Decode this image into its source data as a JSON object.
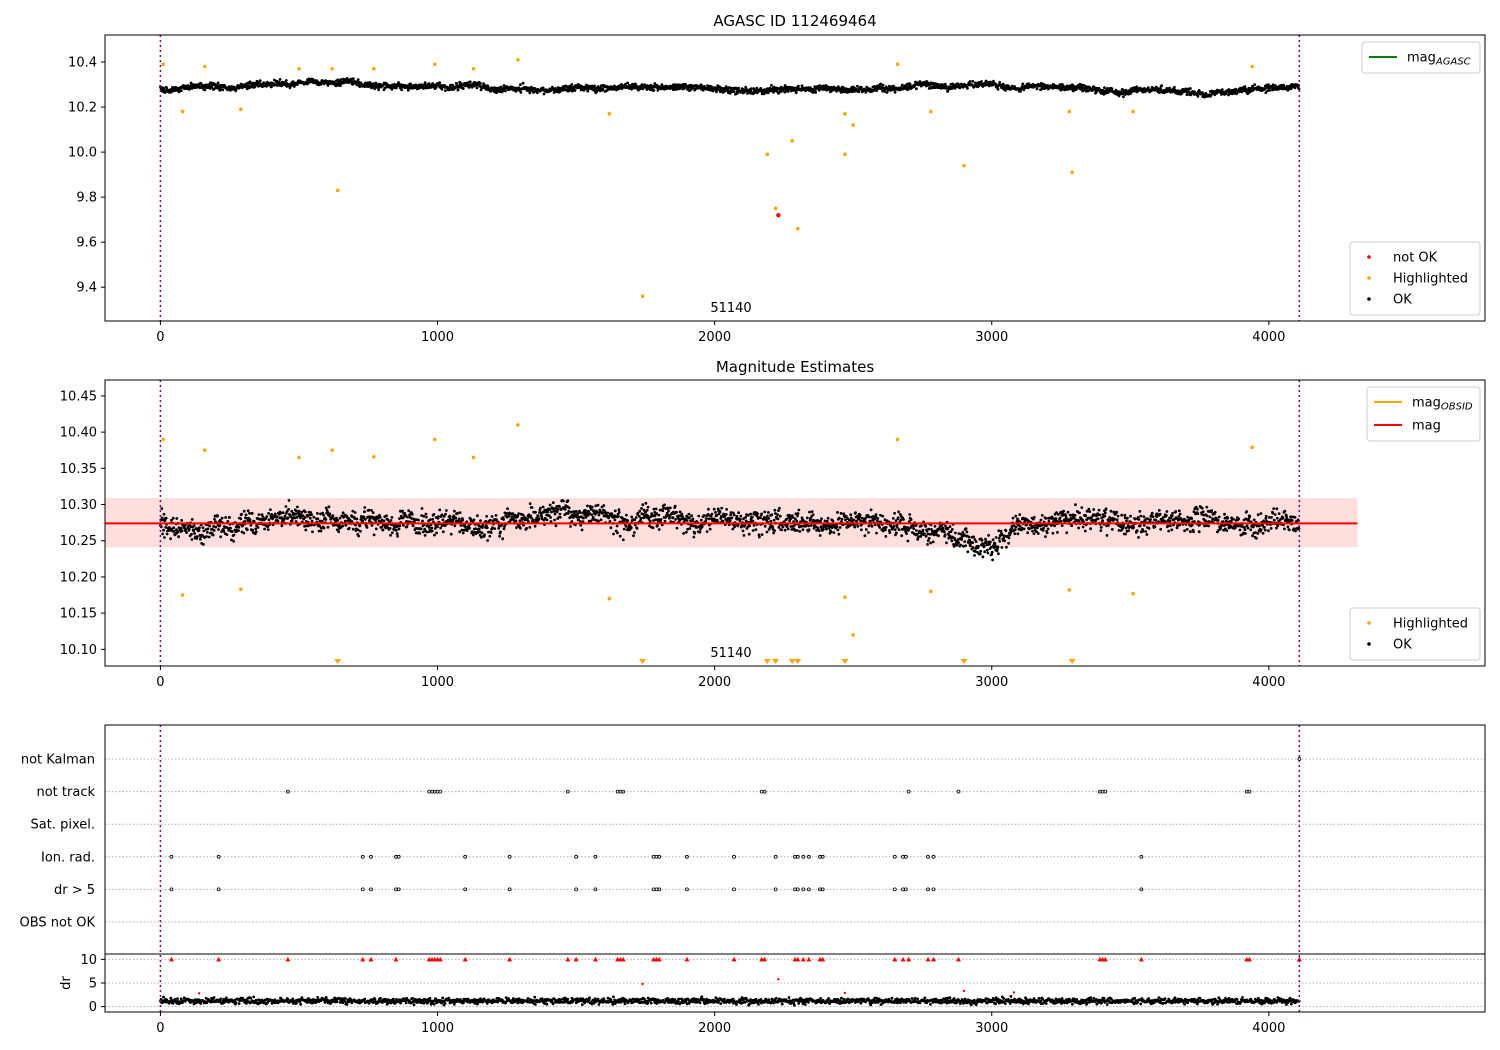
{
  "figure_title": "AGASC ID 112469464",
  "chart_data": [
    {
      "type": "scatter",
      "title": "",
      "annotation": "51140",
      "xlim": [
        -200,
        4780
      ],
      "ylim": [
        9.25,
        10.52
      ],
      "xticks": [
        0,
        1000,
        2000,
        3000,
        4000
      ],
      "yticks": [
        9.4,
        9.6,
        9.8,
        10.0,
        10.2,
        10.4
      ],
      "ytick_labels": [
        "9.4",
        "9.6",
        "9.8",
        "10.0",
        "10.2",
        "10.4"
      ],
      "vlines": [
        0,
        4110
      ],
      "ok_band": {
        "x_range": [
          0,
          4110
        ],
        "center": 10.28,
        "noise": 0.03
      },
      "legend_lines": [
        {
          "name": "mag",
          "sub": "AGASC",
          "color": "#008000"
        }
      ],
      "legend_points": [
        {
          "name": "not OK",
          "color": "#ff0000"
        },
        {
          "name": "Highlighted",
          "color": "#ffa500"
        },
        {
          "name": "OK",
          "color": "#000000"
        }
      ],
      "series": [
        {
          "name": "Highlighted",
          "color": "#ffa500",
          "points": [
            [
              10,
              10.39
            ],
            [
              80,
              10.18
            ],
            [
              160,
              10.38
            ],
            [
              290,
              10.19
            ],
            [
              500,
              10.37
            ],
            [
              620,
              10.37
            ],
            [
              640,
              9.83
            ],
            [
              770,
              10.37
            ],
            [
              990,
              10.39
            ],
            [
              1130,
              10.37
            ],
            [
              1290,
              10.41
            ],
            [
              1620,
              10.17
            ],
            [
              1740,
              9.36
            ],
            [
              2190,
              9.99
            ],
            [
              2220,
              9.75
            ],
            [
              2280,
              10.05
            ],
            [
              2300,
              9.66
            ],
            [
              2470,
              10.17
            ],
            [
              2470,
              9.99
            ],
            [
              2500,
              10.12
            ],
            [
              2660,
              10.39
            ],
            [
              2780,
              10.18
            ],
            [
              2900,
              9.94
            ],
            [
              3280,
              10.18
            ],
            [
              3290,
              9.91
            ],
            [
              3510,
              10.18
            ],
            [
              3940,
              10.38
            ]
          ]
        },
        {
          "name": "not OK",
          "color": "#ff0000",
          "points": [
            [
              2230,
              9.72
            ]
          ]
        }
      ]
    },
    {
      "type": "scatter",
      "title": "Magnitude Estimates",
      "annotation": "51140",
      "xlim": [
        -200,
        4780
      ],
      "ylim": [
        10.077,
        10.472
      ],
      "xticks": [
        0,
        1000,
        2000,
        3000,
        4000
      ],
      "yticks": [
        10.1,
        10.15,
        10.2,
        10.25,
        10.3,
        10.35,
        10.4,
        10.45
      ],
      "ytick_labels": [
        "10.10",
        "10.15",
        "10.20",
        "10.25",
        "10.30",
        "10.35",
        "10.40",
        "10.45"
      ],
      "vlines": [
        0,
        4110
      ],
      "ok_band": {
        "x_range": [
          0,
          4110
        ],
        "center": 10.275,
        "noise": 0.032
      },
      "mag_line": {
        "value": 10.274,
        "x_range": [
          -200,
          4320
        ],
        "color": "#ff0000"
      },
      "mag_band": {
        "low": 10.241,
        "high": 10.309,
        "x_range": [
          -200,
          4320
        ]
      },
      "legend_lines": [
        {
          "name": "mag",
          "sub": "OBSID",
          "color": "#ffa500"
        },
        {
          "name": "mag",
          "sub": "",
          "color": "#ff0000"
        }
      ],
      "legend_points": [
        {
          "name": "Highlighted",
          "color": "#ffa500"
        },
        {
          "name": "OK",
          "color": "#000000"
        }
      ],
      "series": [
        {
          "name": "Highlighted",
          "color": "#ffa500",
          "points": [
            [
              10,
              10.39
            ],
            [
              80,
              10.175
            ],
            [
              160,
              10.375
            ],
            [
              290,
              10.183
            ],
            [
              500,
              10.365
            ],
            [
              620,
              10.375
            ],
            [
              770,
              10.366
            ],
            [
              990,
              10.39
            ],
            [
              1130,
              10.365
            ],
            [
              1290,
              10.41
            ],
            [
              1620,
              10.17
            ],
            [
              2470,
              10.172
            ],
            [
              2500,
              10.12
            ],
            [
              2660,
              10.39
            ],
            [
              2780,
              10.18
            ],
            [
              3280,
              10.182
            ],
            [
              3510,
              10.177
            ],
            [
              3940,
              10.379
            ]
          ]
        }
      ],
      "offscale_markers": [
        640,
        1740,
        2190,
        2220,
        2280,
        2300,
        2470,
        2900,
        3290
      ]
    },
    {
      "type": "scatter",
      "title": "",
      "xlim": [
        -200,
        4780
      ],
      "xticks": [
        0,
        1000,
        2000,
        3000,
        4000
      ],
      "vlines": [
        0,
        4110
      ],
      "flag_rows": [
        "not Kalman",
        "not track",
        "Sat. pixel.",
        "Ion. rad.",
        "dr > 5",
        "OBS not OK"
      ],
      "flags": {
        "not Kalman": [
          4110
        ],
        "not track": [
          460,
          970,
          980,
          990,
          1000,
          1010,
          1470,
          1650,
          1660,
          1670,
          2170,
          2180,
          2700,
          2880,
          3390,
          3400,
          3410,
          3920,
          3930
        ],
        "Sat. pixel.": [],
        "Ion. rad.": [
          40,
          210,
          730,
          760,
          850,
          860,
          1100,
          1260,
          1500,
          1570,
          1780,
          1790,
          1800,
          1900,
          2070,
          2220,
          2290,
          2300,
          2320,
          2340,
          2380,
          2390,
          2650,
          2680,
          2690,
          2770,
          2790,
          3540
        ],
        "dr > 5": [
          40,
          210,
          730,
          760,
          850,
          860,
          1100,
          1260,
          1500,
          1570,
          1780,
          1790,
          1800,
          1900,
          2070,
          2220,
          2290,
          2300,
          2320,
          2340,
          2380,
          2390,
          2650,
          2680,
          2690,
          2770,
          2790,
          3540
        ],
        "OBS not OK": []
      },
      "dr": {
        "ylabel": "dr",
        "ylim": [
          -0.5,
          10.5
        ],
        "yticks": [
          0,
          5,
          10
        ],
        "ytick_labels": [
          "0",
          "5",
          "10"
        ],
        "baseline": {
          "x_range": [
            0,
            4110
          ],
          "center": 1.2,
          "noise": 0.6
        },
        "clipped_x": [
          40,
          210,
          460,
          730,
          760,
          850,
          970,
          980,
          990,
          1000,
          1010,
          1100,
          1260,
          1470,
          1500,
          1570,
          1650,
          1660,
          1670,
          1780,
          1790,
          1800,
          1900,
          2070,
          2170,
          2180,
          2290,
          2300,
          2320,
          2340,
          2380,
          2390,
          2650,
          2680,
          2700,
          2770,
          2790,
          2880,
          3390,
          3400,
          3410,
          3540,
          3920,
          3930,
          4110
        ],
        "red_points": [
          [
            140,
            2.8
          ],
          [
            1740,
            4.8
          ],
          [
            2230,
            5.8
          ],
          [
            2470,
            2.9
          ],
          [
            2900,
            3.3
          ],
          [
            3080,
            3.0
          ]
        ]
      }
    }
  ]
}
